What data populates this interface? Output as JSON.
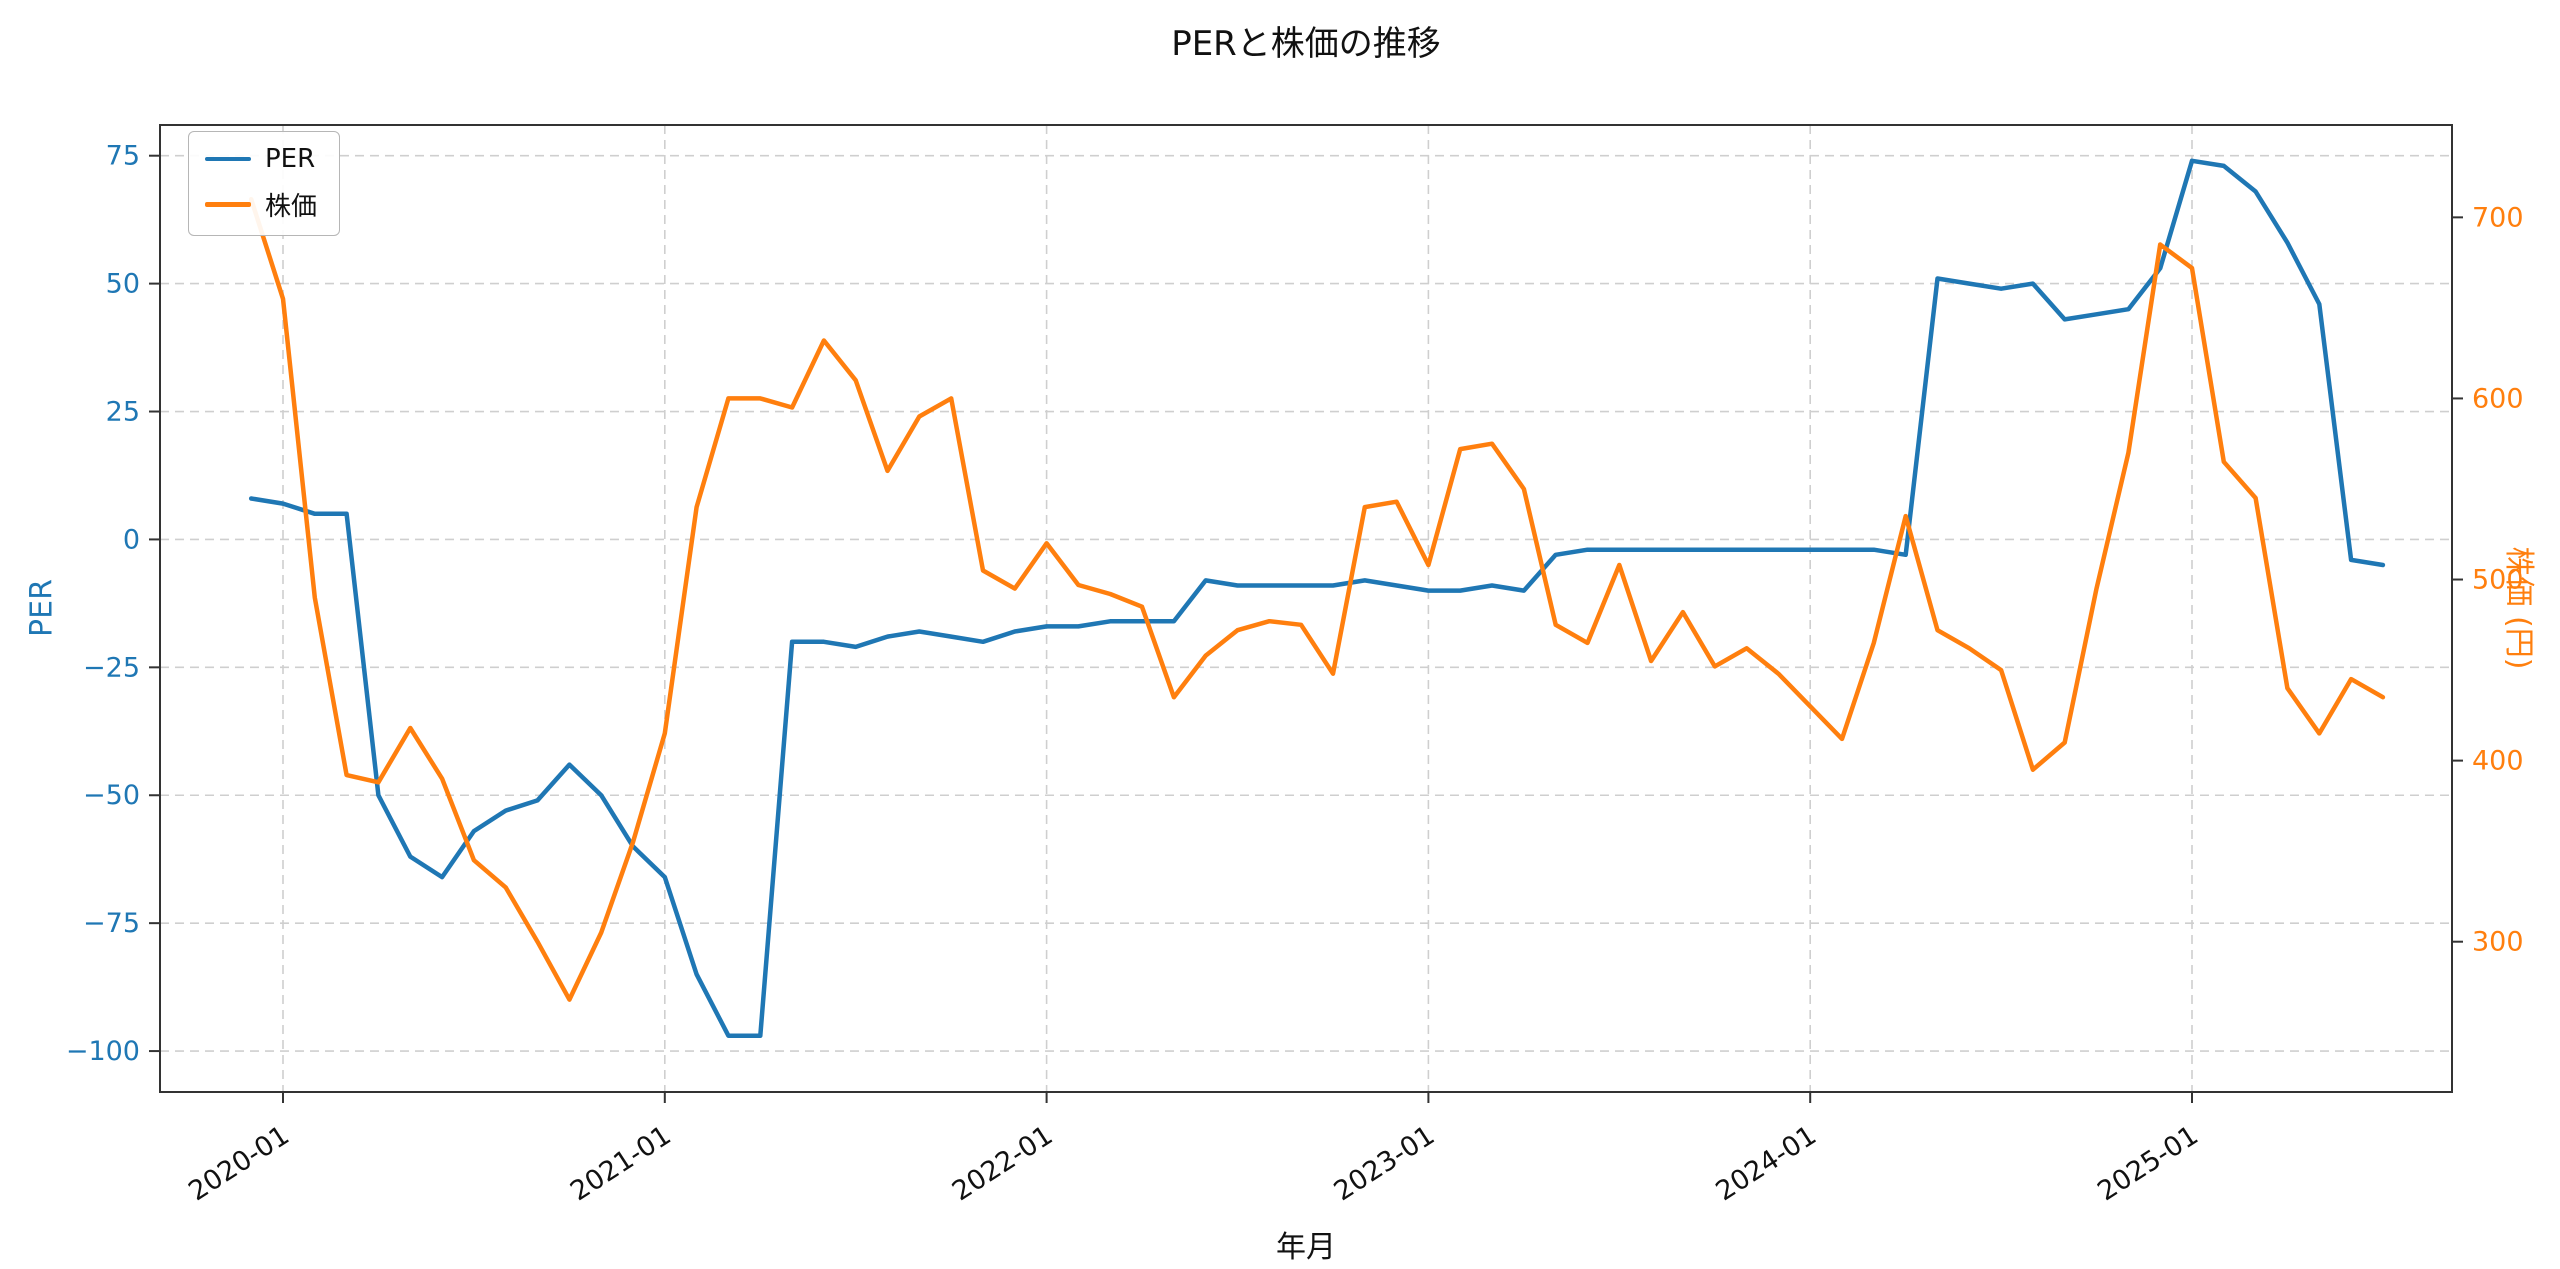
{
  "chart_data": {
    "type": "line",
    "title": "PERと株価の推移",
    "xlabel": "年月",
    "grid": true,
    "legend": {
      "position": "upper left",
      "entries": [
        "PER",
        "株価"
      ]
    },
    "x_ticks": [
      "2020-01",
      "2021-01",
      "2022-01",
      "2023-01",
      "2024-01",
      "2025-01"
    ],
    "x": [
      "2019-12",
      "2020-01",
      "2020-02",
      "2020-03",
      "2020-04",
      "2020-05",
      "2020-06",
      "2020-07",
      "2020-08",
      "2020-09",
      "2020-10",
      "2020-11",
      "2020-12",
      "2021-01",
      "2021-02",
      "2021-03",
      "2021-04",
      "2021-05",
      "2021-06",
      "2021-07",
      "2021-08",
      "2021-09",
      "2021-10",
      "2021-11",
      "2021-12",
      "2022-01",
      "2022-02",
      "2022-03",
      "2022-04",
      "2022-05",
      "2022-06",
      "2022-07",
      "2022-08",
      "2022-09",
      "2022-10",
      "2022-11",
      "2022-12",
      "2023-01",
      "2023-02",
      "2023-03",
      "2023-04",
      "2023-05",
      "2023-06",
      "2023-07",
      "2023-08",
      "2023-09",
      "2023-10",
      "2023-11",
      "2023-12",
      "2024-01",
      "2024-02",
      "2024-03",
      "2024-04",
      "2024-05",
      "2024-06",
      "2024-07",
      "2024-08",
      "2024-09",
      "2024-10",
      "2024-11",
      "2024-12",
      "2025-01",
      "2025-02",
      "2025-03",
      "2025-04",
      "2025-05",
      "2025-06",
      "2025-07"
    ],
    "left_axis": {
      "label": "PER",
      "color": "#1f77b4",
      "ticks": [
        75,
        50,
        25,
        0,
        -25,
        -50,
        -75,
        -100
      ],
      "tick_labels": [
        "75",
        "50",
        "25",
        "0",
        "−25",
        "−50",
        "−75",
        "−100"
      ],
      "lim": [
        -108,
        81
      ]
    },
    "right_axis": {
      "label": "株価 (円)",
      "color": "#ff7f0e",
      "ticks": [
        700,
        600,
        500,
        400,
        300
      ],
      "tick_labels": [
        "700",
        "600",
        "500",
        "400",
        "300"
      ],
      "lim": [
        217,
        751
      ]
    },
    "series": [
      {
        "name": "PER",
        "axis": "left",
        "color": "#1f77b4",
        "values": [
          8,
          7,
          5,
          5,
          -50,
          -62,
          -66,
          -57,
          -53,
          -51,
          -44,
          -50,
          -60,
          -66,
          -85,
          -97,
          -97,
          -20,
          -20,
          -21,
          -19,
          -18,
          -19,
          -20,
          -18,
          -17,
          -17,
          -16,
          -16,
          -16,
          -8,
          -9,
          -9,
          -9,
          -9,
          -8,
          -9,
          -10,
          -10,
          -9,
          -10,
          -3,
          -2,
          -2,
          -2,
          -2,
          -2,
          -2,
          -2,
          -2,
          -2,
          -2,
          -3,
          51,
          50,
          49,
          50,
          43,
          44,
          45,
          53,
          74,
          73,
          68,
          58,
          46,
          -4,
          -5
        ]
      },
      {
        "name": "株価",
        "axis": "right",
        "color": "#ff7f0e",
        "values": [
          710,
          655,
          490,
          392,
          388,
          418,
          390,
          345,
          330,
          300,
          268,
          305,
          355,
          415,
          540,
          600,
          600,
          595,
          632,
          610,
          560,
          590,
          600,
          505,
          495,
          520,
          497,
          492,
          485,
          435,
          458,
          472,
          477,
          475,
          448,
          540,
          543,
          508,
          572,
          575,
          550,
          475,
          465,
          508,
          455,
          482,
          452,
          462,
          448,
          430,
          412,
          465,
          535,
          472,
          462,
          450,
          395,
          410,
          495,
          570,
          685,
          672,
          565,
          545,
          440,
          415,
          445,
          435
        ]
      }
    ]
  }
}
